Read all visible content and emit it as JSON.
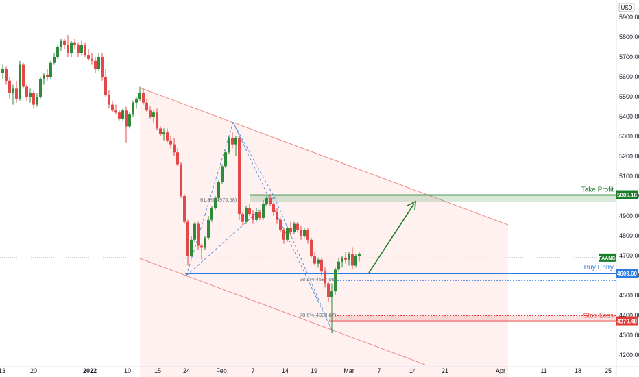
{
  "chart_data": {
    "type": "candlestick",
    "currency": "USD",
    "ylim": [
      4170,
      6000
    ],
    "y_ticks": [
      4200,
      4300,
      4400,
      4500,
      4600,
      4700,
      4800,
      4900,
      5000,
      5100,
      5200,
      5300,
      5400,
      5500,
      5600,
      5700,
      5800,
      5900
    ],
    "x_tick_labels": [
      "13",
      "20",
      "2022",
      "10",
      "15",
      "24",
      "Feb",
      "7",
      "14",
      "19",
      "Mar",
      "7",
      "14",
      "21",
      "Apr",
      "11",
      "18",
      "25"
    ],
    "symbol_tag": "FAANG",
    "current_price": 4690,
    "levels": {
      "take_profit": {
        "label": "Take Profit",
        "price": "5005.16",
        "value": 5005.16,
        "color": "#1b7d2a"
      },
      "buy_entry": {
        "label": "Buy Entry",
        "price": "4609.60",
        "value": 4609.6,
        "color": "#2a7be4"
      },
      "stop_loss": {
        "label": "Stop Loss",
        "price": "4370.48",
        "value": 4370.48,
        "color": "#e53935"
      }
    },
    "fib_labels": [
      {
        "text": "61.8%(4970.58)",
        "value": 4970.58
      },
      {
        "text": "38.2%(4587.06)",
        "value": 4587.06
      },
      {
        "text": "78.6%(4398.87)",
        "value": 4398.87
      }
    ],
    "colors": {
      "up": "#2e8b3a",
      "down": "#e54848",
      "channel": "#f08a86",
      "channel_fill": "#fdecea"
    }
  }
}
